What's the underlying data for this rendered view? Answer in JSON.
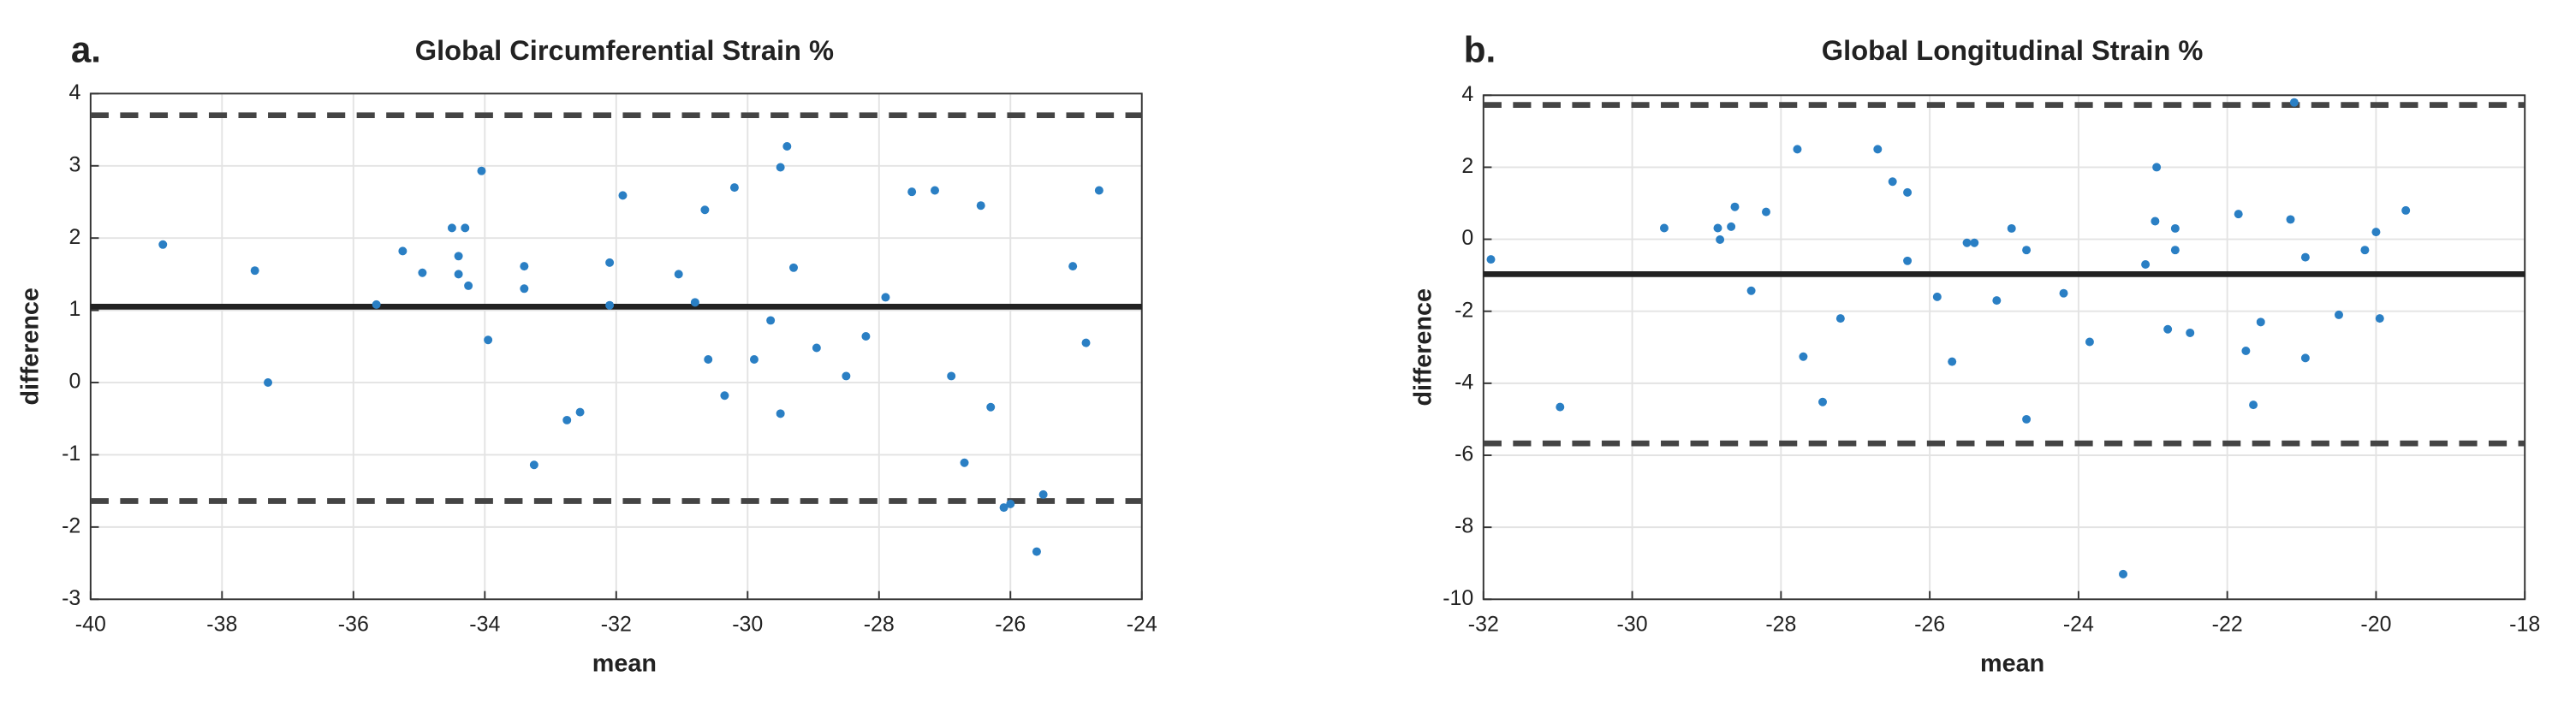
{
  "chart_data": [
    {
      "type": "scatter",
      "panel": "a.",
      "title": "Global Circumferential Strain %",
      "xlabel": "mean",
      "ylabel": "difference",
      "color": "#2a7fc4",
      "grid": true,
      "xlim": [
        -40,
        -24
      ],
      "xticks": [
        -40,
        -38,
        -36,
        -34,
        -32,
        -30,
        -28,
        -26,
        -24
      ],
      "ylim": [
        -3,
        4
      ],
      "yticks": [
        -3,
        -2,
        -1,
        0,
        1,
        2,
        3,
        4
      ],
      "hlines": [
        {
          "value": 3.7,
          "style": "dashed"
        },
        {
          "value": 1.05,
          "style": "solid"
        },
        {
          "value": -1.64,
          "style": "dashed"
        }
      ],
      "x": [
        -38.9,
        -37.5,
        -37.3,
        -35.65,
        -35.25,
        -34.95,
        -34.5,
        -34.3,
        -34.4,
        -34.4,
        -34.25,
        -34.05,
        -33.95,
        -33.4,
        -33.4,
        -33.25,
        -32.75,
        -32.55,
        -32.1,
        -32.1,
        -31.9,
        -31.05,
        -30.8,
        -30.65,
        -30.6,
        -30.35,
        -30.2,
        -29.9,
        -29.65,
        -29.5,
        -29.4,
        -29.5,
        -29.3,
        -28.95,
        -28.5,
        -28.2,
        -27.9,
        -27.5,
        -27.15,
        -26.9,
        -26.7,
        -26.45,
        -26.3,
        -26.1,
        -26.0,
        -25.6,
        -25.5,
        -25.05,
        -24.85,
        -24.65
      ],
      "values": [
        1.91,
        1.55,
        0.0,
        1.08,
        1.82,
        1.52,
        2.14,
        2.14,
        1.75,
        1.5,
        1.34,
        2.93,
        0.59,
        1.61,
        1.3,
        -1.14,
        -0.52,
        -0.41,
        1.66,
        1.07,
        2.59,
        1.5,
        1.11,
        2.39,
        0.32,
        -0.18,
        2.7,
        0.32,
        0.86,
        2.98,
        3.27,
        -0.43,
        1.59,
        0.48,
        0.09,
        0.64,
        1.18,
        2.64,
        2.66,
        0.09,
        -1.11,
        2.45,
        -0.34,
        -1.73,
        -1.68,
        -2.34,
        -1.55,
        1.61,
        0.55,
        2.66
      ]
    },
    {
      "type": "scatter",
      "panel": "b.",
      "title": "Global Longitudinal  Strain %",
      "xlabel": "mean",
      "ylabel": "difference",
      "color": "#2a7fc4",
      "grid": true,
      "xlim": [
        -32,
        -18
      ],
      "xticks": [
        -32,
        -30,
        -28,
        -26,
        -24,
        -22,
        -20,
        -18
      ],
      "ylim": [
        -10,
        4
      ],
      "yticks": [
        -10,
        -8,
        -6,
        -4,
        -2,
        0,
        2,
        4
      ],
      "hlines": [
        {
          "value": 3.73,
          "style": "dashed"
        },
        {
          "value": -0.97,
          "style": "solid"
        },
        {
          "value": -5.67,
          "style": "dashed"
        }
      ],
      "x": [
        -31.9,
        -30.97,
        -29.57,
        -28.85,
        -28.82,
        -28.67,
        -28.62,
        -28.4,
        -28.2,
        -27.78,
        -27.7,
        -27.44,
        -27.2,
        -26.7,
        -26.5,
        -26.3,
        -26.3,
        -25.9,
        -25.7,
        -25.5,
        -25.4,
        -25.1,
        -24.9,
        -24.7,
        -24.7,
        -24.2,
        -23.85,
        -23.4,
        -23.1,
        -22.97,
        -22.95,
        -22.8,
        -22.7,
        -22.7,
        -22.5,
        -21.85,
        -21.75,
        -21.65,
        -21.55,
        -21.15,
        -21.1,
        -20.95,
        -20.95,
        -20.5,
        -20.15,
        -20.0,
        -19.95,
        -19.6
      ],
      "values": [
        -0.56,
        -4.66,
        0.31,
        0.31,
        -0.01,
        0.35,
        0.9,
        -1.43,
        0.76,
        2.5,
        -3.26,
        -4.52,
        -2.2,
        2.5,
        1.6,
        1.3,
        -0.6,
        -1.6,
        -3.4,
        -0.1,
        -0.1,
        -1.7,
        0.3,
        -0.3,
        -5.0,
        -1.5,
        -2.85,
        -9.3,
        -0.7,
        0.5,
        2.0,
        -2.5,
        0.3,
        -0.3,
        -2.6,
        0.7,
        -3.1,
        -4.6,
        -2.3,
        0.55,
        3.8,
        -3.3,
        -0.5,
        -2.1,
        -0.3,
        0.2,
        -2.2,
        0.8
      ]
    }
  ]
}
